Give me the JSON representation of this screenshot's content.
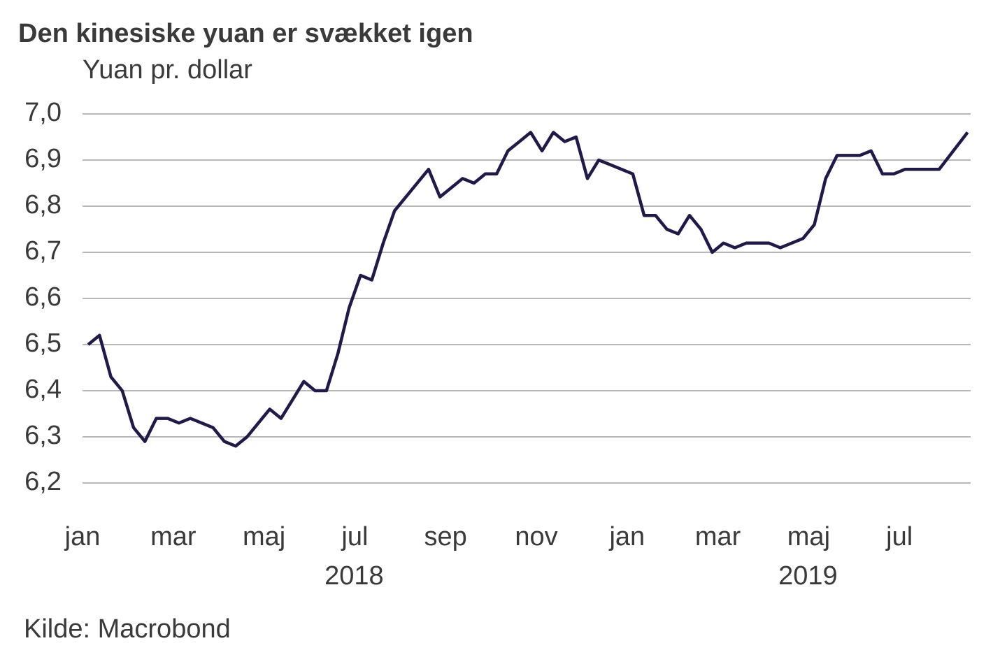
{
  "chart_data": {
    "type": "line",
    "title": "Den kinesiske yuan er svækket igen",
    "subtitle": "Yuan pr. dollar",
    "source": "Kilde: Macrobond",
    "x": [
      "2018-01",
      "2018-01",
      "2018-01",
      "2018-01",
      "2018-02",
      "2018-02",
      "2018-02",
      "2018-02",
      "2018-03",
      "2018-03",
      "2018-03",
      "2018-03",
      "2018-04",
      "2018-04",
      "2018-04",
      "2018-04",
      "2018-05",
      "2018-05",
      "2018-05",
      "2018-05",
      "2018-06",
      "2018-06",
      "2018-06",
      "2018-06",
      "2018-07",
      "2018-07",
      "2018-07",
      "2018-07",
      "2018-08",
      "2018-08",
      "2018-08",
      "2018-08",
      "2018-09",
      "2018-09",
      "2018-09",
      "2018-09",
      "2018-10",
      "2018-10",
      "2018-10",
      "2018-10",
      "2018-11",
      "2018-11",
      "2018-11",
      "2018-11",
      "2018-12",
      "2018-12",
      "2018-12",
      "2018-12",
      "2019-01",
      "2019-01",
      "2019-01",
      "2019-01",
      "2019-02",
      "2019-02",
      "2019-02",
      "2019-02",
      "2019-03",
      "2019-03",
      "2019-03",
      "2019-03",
      "2019-04",
      "2019-04",
      "2019-04",
      "2019-04",
      "2019-05",
      "2019-05",
      "2019-05",
      "2019-05",
      "2019-06",
      "2019-06",
      "2019-06",
      "2019-06",
      "2019-07",
      "2019-07",
      "2019-07",
      "2019-07",
      "2019-08"
    ],
    "series": [
      {
        "name": "Yuan pr. dollar",
        "color": "#1f1a4a",
        "values": [
          6.5,
          6.52,
          6.43,
          6.4,
          6.32,
          6.29,
          6.34,
          6.34,
          6.33,
          6.34,
          6.33,
          6.32,
          6.29,
          6.28,
          6.3,
          6.33,
          6.36,
          6.34,
          6.38,
          6.42,
          6.4,
          6.4,
          6.48,
          6.58,
          6.65,
          6.64,
          6.72,
          6.79,
          6.82,
          6.85,
          6.88,
          6.82,
          6.84,
          6.86,
          6.85,
          6.87,
          6.87,
          6.92,
          6.94,
          6.96,
          6.92,
          6.96,
          6.94,
          6.95,
          6.86,
          6.9,
          6.89,
          6.88,
          6.87,
          6.78,
          6.78,
          6.75,
          6.74,
          6.78,
          6.75,
          6.7,
          6.72,
          6.71,
          6.72,
          6.72,
          6.72,
          6.71,
          6.72,
          6.73,
          6.76,
          6.86,
          6.91,
          6.91,
          6.91,
          6.92,
          6.87,
          6.87,
          6.88,
          6.88,
          6.88,
          6.88,
          6.96
        ]
      }
    ],
    "xlim": [
      "2018-01",
      "2019-08"
    ],
    "xticks": [
      {
        "value": "2018-01",
        "label": "jan"
      },
      {
        "value": "2018-03",
        "label": "mar"
      },
      {
        "value": "2018-05",
        "label": "maj"
      },
      {
        "value": "2018-07",
        "label": "jul"
      },
      {
        "value": "2018-09",
        "label": "sep"
      },
      {
        "value": "2018-11",
        "label": "nov"
      },
      {
        "value": "2019-01",
        "label": "jan"
      },
      {
        "value": "2019-03",
        "label": "mar"
      },
      {
        "value": "2019-05",
        "label": "maj"
      },
      {
        "value": "2019-07",
        "label": "jul"
      }
    ],
    "x_groups": [
      "2018",
      "2019"
    ],
    "ylim": [
      6.2,
      7.0
    ],
    "yticks": [
      {
        "value": 6.2,
        "label": "6,2"
      },
      {
        "value": 6.3,
        "label": "6,3"
      },
      {
        "value": 6.4,
        "label": "6,4"
      },
      {
        "value": 6.5,
        "label": "6,5"
      },
      {
        "value": 6.6,
        "label": "6,6"
      },
      {
        "value": 6.7,
        "label": "6,7"
      },
      {
        "value": 6.8,
        "label": "6,8"
      },
      {
        "value": 6.9,
        "label": "6,9"
      },
      {
        "value": 7.0,
        "label": "7,0"
      }
    ],
    "grid": true
  }
}
